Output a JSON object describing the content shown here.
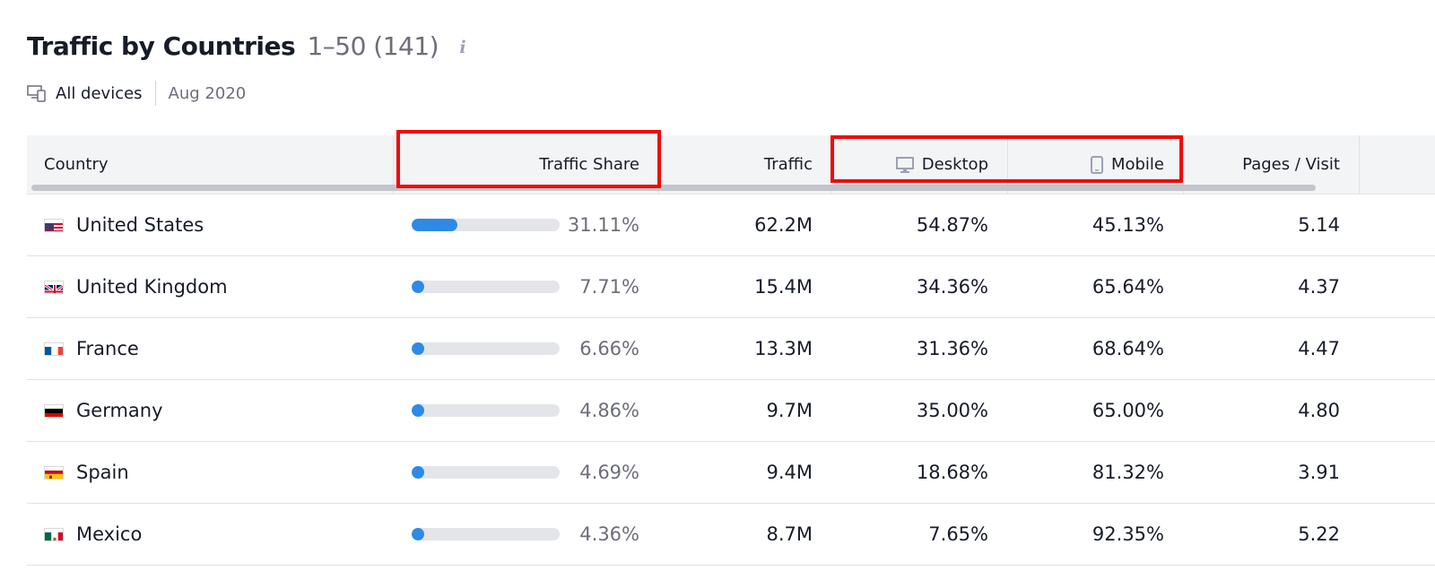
{
  "header": {
    "title": "Traffic by Countries",
    "range": "1–50 (141)",
    "info_icon": "info-icon"
  },
  "filters": {
    "device_icon": "devices-icon",
    "devices": "All devices",
    "date": "Aug 2020"
  },
  "table": {
    "columns": {
      "country": "Country",
      "traffic_share": "Traffic Share",
      "traffic": "Traffic",
      "desktop": "Desktop",
      "mobile": "Mobile",
      "pages_visit": "Pages / Visit"
    },
    "rows": [
      {
        "country": "United States",
        "flag": "us-flag-icon",
        "share": "31.11%",
        "share_value": 31.11,
        "traffic": "62.2M",
        "desktop": "54.87%",
        "mobile": "45.13%",
        "pages": "5.14"
      },
      {
        "country": "United Kingdom",
        "flag": "uk-flag-icon",
        "share": "7.71%",
        "share_value": 7.71,
        "traffic": "15.4M",
        "desktop": "34.36%",
        "mobile": "65.64%",
        "pages": "4.37"
      },
      {
        "country": "France",
        "flag": "france-flag-icon",
        "share": "6.66%",
        "share_value": 6.66,
        "traffic": "13.3M",
        "desktop": "31.36%",
        "mobile": "68.64%",
        "pages": "4.47"
      },
      {
        "country": "Germany",
        "flag": "germany-flag-icon",
        "share": "4.86%",
        "share_value": 4.86,
        "traffic": "9.7M",
        "desktop": "35.00%",
        "mobile": "65.00%",
        "pages": "4.80"
      },
      {
        "country": "Spain",
        "flag": "spain-flag-icon",
        "share": "4.69%",
        "share_value": 4.69,
        "traffic": "9.4M",
        "desktop": "18.68%",
        "mobile": "81.32%",
        "pages": "3.91"
      },
      {
        "country": "Mexico",
        "flag": "mexico-flag-icon",
        "share": "4.36%",
        "share_value": 4.36,
        "traffic": "8.7M",
        "desktop": "7.65%",
        "mobile": "92.35%",
        "pages": "5.22"
      }
    ]
  },
  "colors": {
    "bar_fill": "#2e8ae6",
    "bar_track": "#e4e5e9",
    "highlight": "#ee0a0a"
  }
}
